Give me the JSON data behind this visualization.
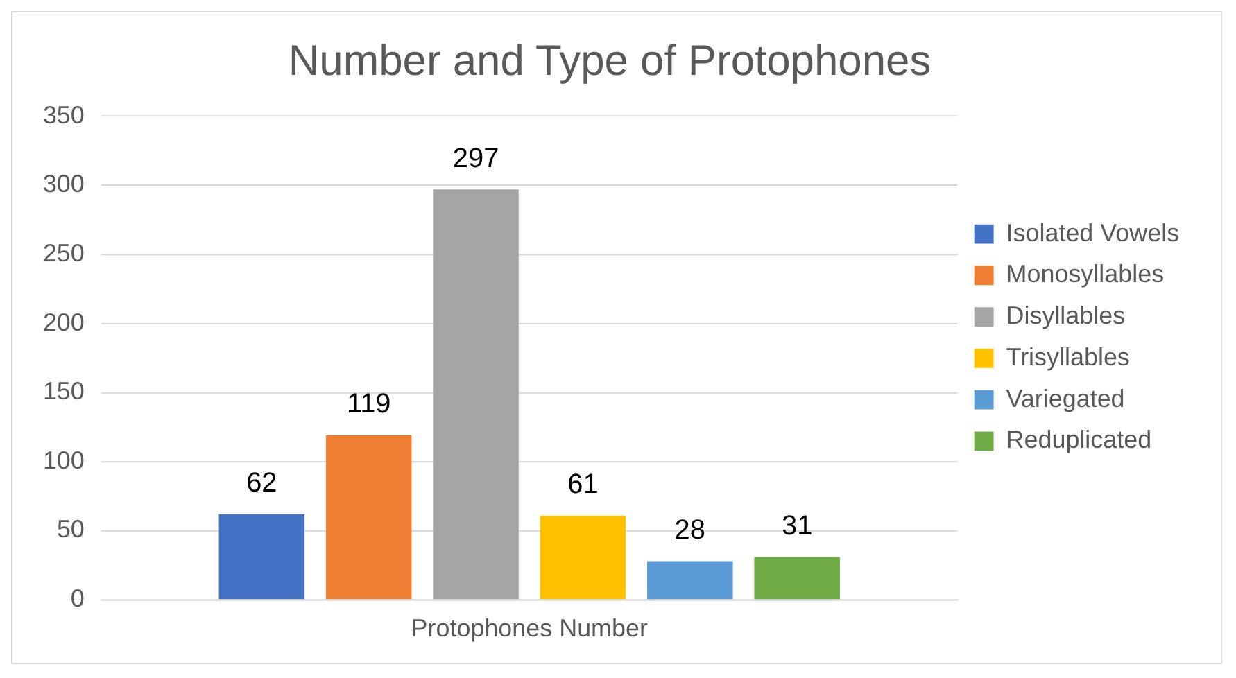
{
  "chart_data": {
    "type": "bar",
    "title": "Number and Type of Protophones",
    "categories": [
      "Protophones Number"
    ],
    "series": [
      {
        "name": "Isolated Vowels",
        "color": "#4472c4",
        "values": [
          62
        ]
      },
      {
        "name": "Monosyllables",
        "color": "#ed7d31",
        "values": [
          119
        ]
      },
      {
        "name": "Disyllables",
        "color": "#a5a5a5",
        "values": [
          297
        ]
      },
      {
        "name": "Trisyllables",
        "color": "#ffc000",
        "values": [
          61
        ]
      },
      {
        "name": "Variegated",
        "color": "#5b9bd5",
        "values": [
          28
        ]
      },
      {
        "name": "Reduplicated",
        "color": "#70ad47",
        "values": [
          31
        ]
      }
    ],
    "ylim": [
      0,
      350
    ],
    "yticks": [
      0,
      50,
      100,
      150,
      200,
      250,
      300,
      350
    ],
    "grid": "y",
    "legend": "right",
    "data_labels": true
  }
}
